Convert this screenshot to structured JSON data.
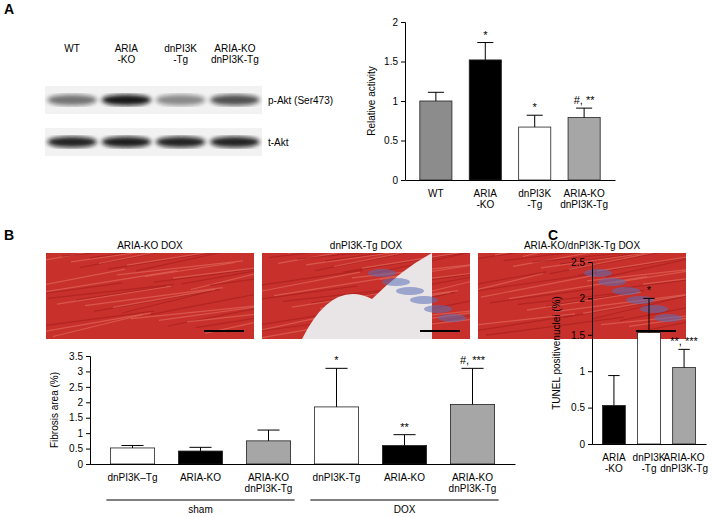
{
  "chart_data": [
    {
      "type": "bar",
      "panel": "A",
      "categories": [
        "WT",
        "ARIA\n-KO",
        "dnPI3K\n-Tg",
        "ARIA-KO\ndnPI3K-Tg"
      ],
      "values": [
        1.0,
        1.52,
        0.67,
        0.79
      ],
      "errors": [
        0.11,
        0.22,
        0.15,
        0.12
      ],
      "annotations": [
        null,
        "*",
        "*",
        "#, **"
      ],
      "colors": [
        "#8c8c8c",
        "#000000",
        "#ffffff",
        "#a6a6a6"
      ],
      "y_label": "Relative activity",
      "ylim": [
        0,
        2
      ],
      "yticks": [
        0,
        0.5,
        1,
        1.5,
        2
      ]
    },
    {
      "type": "bar",
      "panel": "B",
      "categories": [
        "dnPI3K–Tg",
        "ARIA-KO",
        "ARIA-KO\ndnPI3K-Tg",
        "dnPI3K-Tg",
        "ARIA-KO",
        "ARIA-KO\ndnPI3K-Tg"
      ],
      "groups": [
        "sham",
        "DOX"
      ],
      "values": [
        0.52,
        0.42,
        0.75,
        1.85,
        0.6,
        1.93
      ],
      "errors": [
        0.08,
        0.12,
        0.35,
        1.25,
        0.35,
        1.17
      ],
      "annotations": [
        null,
        null,
        null,
        "*",
        "**",
        "#, ***"
      ],
      "colors": [
        "#ffffff",
        "#000000",
        "#a6a6a6",
        "#ffffff",
        "#000000",
        "#a6a6a6"
      ],
      "y_label": "Fibrosis area (%)",
      "ylim": [
        0,
        3.5
      ],
      "yticks": [
        0,
        0.5,
        1,
        1.5,
        2,
        2.5,
        3,
        3.5
      ]
    },
    {
      "type": "bar",
      "panel": "C",
      "categories": [
        "ARIA\n-KO",
        "dnPI3K\n-Tg",
        "ARIA-KO\ndnPI3K-Tg"
      ],
      "values": [
        0.53,
        1.53,
        1.05
      ],
      "errors": [
        0.41,
        0.47,
        0.25
      ],
      "annotations": [
        null,
        "*",
        "**, ***"
      ],
      "colors": [
        "#000000",
        "#ffffff",
        "#a6a6a6"
      ],
      "y_label": "TUNEL positivenuclei (%)",
      "ylim": [
        0,
        2.5
      ],
      "yticks": [
        0,
        0.5,
        1,
        1.5,
        2,
        2.5
      ]
    }
  ],
  "blot": {
    "lanes": [
      "WT",
      "ARIA\n-KO",
      "dnPI3K\n-Tg",
      "ARIA-KO\ndnPI3K-Tg"
    ],
    "rows": [
      "p-Akt (Ser473)",
      "t-Akt"
    ]
  },
  "micrographs": [
    "ARIA-KO DOX",
    "dnPI3K-Tg DOX",
    "ARIA-KO/dnPI3K-Tg DOX"
  ]
}
